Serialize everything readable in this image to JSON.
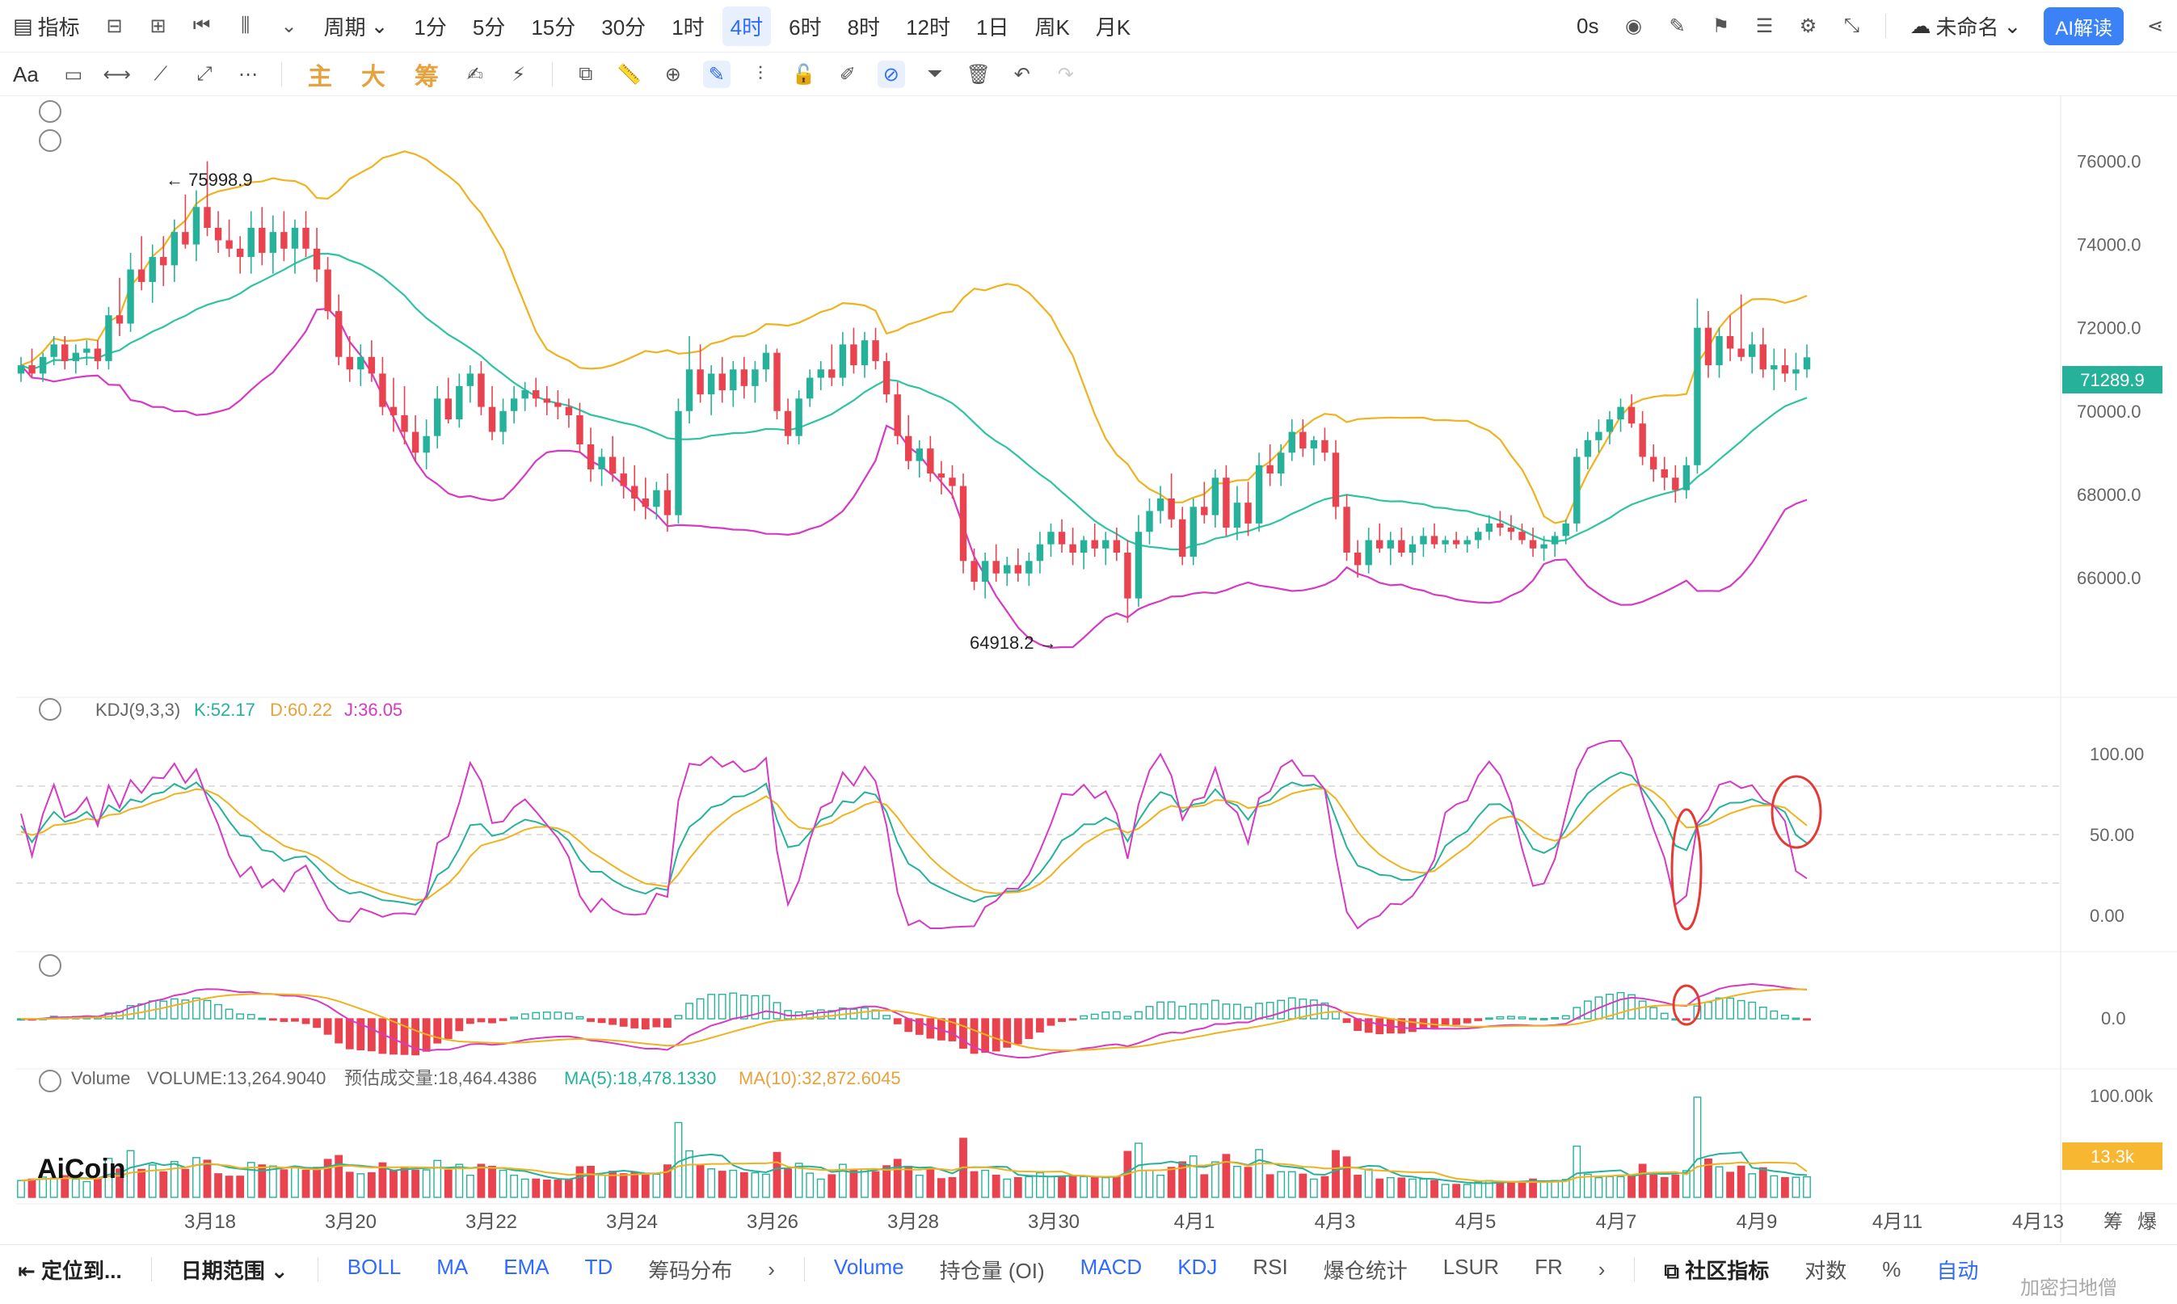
{
  "toolbar": {
    "indicators_label": "指标",
    "period_label": "周期",
    "periods": [
      "1分",
      "5分",
      "15分",
      "30分",
      "1时",
      "4时",
      "6时",
      "8时",
      "12时",
      "1日",
      "周K",
      "月K"
    ],
    "active_period": "4时",
    "countdown": "0s",
    "layout_name": "未命名",
    "ai_label": "AI解读"
  },
  "drawbar": {
    "font_label": "Aa",
    "cn_tools": [
      "主",
      "大",
      "筹"
    ]
  },
  "price_panel": {
    "yticks": [
      "76000.0",
      "74000.0",
      "72000.0",
      "70000.0",
      "68000.0",
      "66000.0"
    ],
    "last_price": "71289.9",
    "high_label": "← 75998.9",
    "low_label": "64918.2 →"
  },
  "kdj_panel": {
    "title": "KDJ(9,3,3)",
    "k": "K:52.17",
    "d": "D:60.22",
    "j": "J:36.05",
    "yticks": [
      "100.00",
      "50.00",
      "0.00"
    ]
  },
  "macd_panel": {
    "yticks": [
      "0.0"
    ]
  },
  "volume_panel": {
    "title": "Volume",
    "volume": "VOLUME:13,264.9040",
    "estimate": "预估成交量:18,464.4386",
    "ma5": "MA(5):18,478.1330",
    "ma10": "MA(10):32,872.6045",
    "yticks": [
      "100.00k"
    ],
    "last_volume": "13.3k",
    "logo": "AiCoin"
  },
  "x_axis": [
    "3月18",
    "3月20",
    "3月22",
    "3月24",
    "3月26",
    "3月28",
    "3月30",
    "4月1",
    "4月3",
    "4月5",
    "4月7",
    "4月9",
    "4月11",
    "4月13"
  ],
  "x_axis_right": [
    "筹",
    "爆"
  ],
  "bottombar": {
    "locate": "定位到...",
    "date_range": "日期范围",
    "indicators_left": [
      "BOLL",
      "MA",
      "EMA",
      "TD",
      "筹码分布"
    ],
    "indicators_right": [
      "Volume",
      "持仓量 (OI)",
      "MACD",
      "KDJ",
      "RSI",
      "爆仓统计",
      "LSUR",
      "FR"
    ],
    "community": "社区指标",
    "log_label": "对数",
    "pct_label": "%",
    "auto_label": "自动"
  },
  "watermark": "加密扫地僧",
  "colors": {
    "up": "#26b29a",
    "down": "#e8434f",
    "boll_upper": "#f0b21e",
    "boll_mid": "#2ec4a0",
    "boll_lower": "#d63ac4",
    "accent": "#2f6bff"
  },
  "chart_data": {
    "type": "candlestick",
    "x_axis_label_range": [
      "3月18",
      "4月13"
    ],
    "price_ylim": [
      64000,
      77000
    ],
    "ohlc": [
      [
        70900,
        71300,
        70700,
        71100
      ],
      [
        71100,
        71500,
        70800,
        70900
      ],
      [
        70900,
        71400,
        70700,
        71300
      ],
      [
        71300,
        71800,
        71100,
        71600
      ],
      [
        71600,
        71800,
        71000,
        71200
      ],
      [
        71200,
        71600,
        70900,
        71400
      ],
      [
        71400,
        71700,
        71100,
        71500
      ],
      [
        71500,
        71700,
        71000,
        71200
      ],
      [
        71200,
        72500,
        71000,
        72300
      ],
      [
        72300,
        73200,
        71800,
        72100
      ],
      [
        72100,
        73800,
        71900,
        73400
      ],
      [
        73400,
        74200,
        72900,
        73100
      ],
      [
        73100,
        74000,
        72600,
        73700
      ],
      [
        73700,
        74200,
        73000,
        73500
      ],
      [
        73500,
        74600,
        73100,
        74300
      ],
      [
        74300,
        75200,
        73900,
        74000
      ],
      [
        74000,
        75300,
        73600,
        74900
      ],
      [
        74900,
        76000,
        74200,
        74400
      ],
      [
        74400,
        74800,
        73800,
        74100
      ],
      [
        74100,
        74600,
        73700,
        73900
      ],
      [
        73900,
        74200,
        73300,
        73700
      ],
      [
        73700,
        74800,
        73300,
        74400
      ],
      [
        74400,
        74900,
        73500,
        73800
      ],
      [
        73800,
        74700,
        73300,
        74300
      ],
      [
        74300,
        74800,
        73600,
        73900
      ],
      [
        73900,
        74600,
        73300,
        74400
      ],
      [
        74400,
        74800,
        73700,
        73900
      ],
      [
        73900,
        74400,
        73100,
        73400
      ],
      [
        73400,
        73700,
        72200,
        72400
      ],
      [
        72400,
        72800,
        71100,
        71300
      ],
      [
        71300,
        71800,
        70700,
        71000
      ],
      [
        71000,
        71600,
        70600,
        71300
      ],
      [
        71300,
        71700,
        70700,
        70900
      ],
      [
        70900,
        71300,
        69900,
        70100
      ],
      [
        70100,
        70800,
        69500,
        69900
      ],
      [
        69900,
        70600,
        69200,
        69500
      ],
      [
        69500,
        69900,
        68800,
        69000
      ],
      [
        69000,
        69800,
        68600,
        69400
      ],
      [
        69400,
        70600,
        69100,
        70300
      ],
      [
        70300,
        70800,
        69700,
        69800
      ],
      [
        69800,
        70900,
        69600,
        70600
      ],
      [
        70600,
        71100,
        70200,
        70900
      ],
      [
        70900,
        71200,
        69900,
        70100
      ],
      [
        70100,
        70600,
        69300,
        69500
      ],
      [
        69500,
        70300,
        69200,
        70000
      ],
      [
        70000,
        70600,
        69700,
        70300
      ],
      [
        70300,
        70700,
        70000,
        70500
      ],
      [
        70500,
        70800,
        70100,
        70300
      ],
      [
        70300,
        70600,
        69900,
        70200
      ],
      [
        70200,
        70500,
        69800,
        70100
      ],
      [
        70100,
        70300,
        69600,
        69900
      ],
      [
        69900,
        70200,
        69000,
        69200
      ],
      [
        69200,
        69600,
        68300,
        68600
      ],
      [
        68600,
        69100,
        68200,
        68900
      ],
      [
        68900,
        69400,
        68300,
        68500
      ],
      [
        68500,
        68900,
        67900,
        68200
      ],
      [
        68200,
        68700,
        67600,
        67900
      ],
      [
        67900,
        68400,
        67400,
        67700
      ],
      [
        67700,
        68300,
        67400,
        68100
      ],
      [
        68100,
        68500,
        67100,
        67500
      ],
      [
        67500,
        70300,
        67300,
        70000
      ],
      [
        70000,
        71800,
        69700,
        71000
      ],
      [
        71000,
        71600,
        70200,
        70400
      ],
      [
        70400,
        71100,
        69900,
        70900
      ],
      [
        70900,
        71300,
        70200,
        70500
      ],
      [
        70500,
        71200,
        70100,
        71000
      ],
      [
        71000,
        71300,
        70300,
        70600
      ],
      [
        70600,
        71200,
        70200,
        71000
      ],
      [
        71000,
        71600,
        70700,
        71400
      ],
      [
        71400,
        71500,
        69800,
        70000
      ],
      [
        70000,
        70300,
        69200,
        69400
      ],
      [
        69400,
        70500,
        69200,
        70300
      ],
      [
        70300,
        71000,
        70100,
        70800
      ],
      [
        70800,
        71200,
        70500,
        71000
      ],
      [
        71000,
        71600,
        70600,
        70800
      ],
      [
        70800,
        71900,
        70600,
        71600
      ],
      [
        71600,
        72000,
        70900,
        71100
      ],
      [
        71100,
        71900,
        70800,
        71700
      ],
      [
        71700,
        72000,
        71000,
        71200
      ],
      [
        71200,
        71400,
        70200,
        70400
      ],
      [
        70400,
        70700,
        69200,
        69400
      ],
      [
        69400,
        69900,
        68600,
        68800
      ],
      [
        68800,
        69300,
        68400,
        69100
      ],
      [
        69100,
        69400,
        68300,
        68500
      ],
      [
        68500,
        68800,
        68000,
        68400
      ],
      [
        68400,
        68700,
        67900,
        68200
      ],
      [
        68200,
        68500,
        66100,
        66400
      ],
      [
        66400,
        66700,
        65700,
        65900
      ],
      [
        65900,
        66600,
        65500,
        66400
      ],
      [
        66400,
        66800,
        65900,
        66100
      ],
      [
        66100,
        66500,
        65800,
        66300
      ],
      [
        66300,
        66700,
        65900,
        66100
      ],
      [
        66100,
        66600,
        65800,
        66400
      ],
      [
        66400,
        67100,
        66100,
        66800
      ],
      [
        66800,
        67300,
        66500,
        67100
      ],
      [
        67100,
        67400,
        66600,
        66800
      ],
      [
        66800,
        67200,
        66300,
        66600
      ],
      [
        66600,
        67000,
        66200,
        66900
      ],
      [
        66900,
        67300,
        66500,
        66700
      ],
      [
        66700,
        67100,
        66300,
        66900
      ],
      [
        66900,
        67200,
        66400,
        66600
      ],
      [
        66600,
        66900,
        64918,
        65500
      ],
      [
        65500,
        67500,
        65300,
        67100
      ],
      [
        67100,
        67900,
        66800,
        67600
      ],
      [
        67600,
        68200,
        67300,
        67900
      ],
      [
        67900,
        68500,
        67200,
        67400
      ],
      [
        67400,
        67700,
        66300,
        66500
      ],
      [
        66500,
        67900,
        66300,
        67700
      ],
      [
        67700,
        68300,
        67300,
        67500
      ],
      [
        67500,
        68600,
        67200,
        68400
      ],
      [
        68400,
        68700,
        67000,
        67200
      ],
      [
        67200,
        68200,
        66900,
        67800
      ],
      [
        67800,
        68300,
        67000,
        67300
      ],
      [
        67300,
        69000,
        67100,
        68700
      ],
      [
        68700,
        69200,
        68200,
        68500
      ],
      [
        68500,
        69200,
        68200,
        69000
      ],
      [
        69000,
        69800,
        68800,
        69500
      ],
      [
        69500,
        69800,
        68900,
        69100
      ],
      [
        69100,
        69400,
        68700,
        69300
      ],
      [
        69300,
        69600,
        68800,
        69000
      ],
      [
        69000,
        69300,
        67400,
        67700
      ],
      [
        67700,
        68000,
        66400,
        66600
      ],
      [
        66600,
        66900,
        66000,
        66300
      ],
      [
        66300,
        67200,
        66100,
        66900
      ],
      [
        66900,
        67300,
        66600,
        66700
      ],
      [
        66700,
        67100,
        66300,
        66900
      ],
      [
        66900,
        67200,
        66500,
        66600
      ],
      [
        66600,
        67000,
        66300,
        66800
      ],
      [
        66800,
        67200,
        66500,
        67000
      ],
      [
        67000,
        67300,
        66700,
        66800
      ],
      [
        66800,
        67000,
        66600,
        66900
      ],
      [
        66900,
        67100,
        66700,
        66800
      ],
      [
        66800,
        67000,
        66600,
        66900
      ],
      [
        66900,
        67200,
        66700,
        67100
      ],
      [
        67100,
        67500,
        66900,
        67300
      ],
      [
        67300,
        67600,
        67000,
        67200
      ],
      [
        67200,
        67500,
        66900,
        67100
      ],
      [
        67100,
        67300,
        66800,
        66900
      ],
      [
        66900,
        67200,
        66500,
        66700
      ],
      [
        66700,
        67000,
        66400,
        66800
      ],
      [
        66800,
        67100,
        66500,
        67000
      ],
      [
        67000,
        67400,
        66800,
        67300
      ],
      [
        67300,
        69100,
        67100,
        68900
      ],
      [
        68900,
        69500,
        68600,
        69300
      ],
      [
        69300,
        69800,
        69000,
        69500
      ],
      [
        69500,
        70000,
        69200,
        69800
      ],
      [
        69800,
        70300,
        69500,
        70100
      ],
      [
        70100,
        70400,
        69600,
        69700
      ],
      [
        69700,
        70000,
        68700,
        68900
      ],
      [
        68900,
        69200,
        68300,
        68600
      ],
      [
        68600,
        68900,
        68100,
        68400
      ],
      [
        68400,
        68700,
        67800,
        68100
      ],
      [
        68100,
        68900,
        67900,
        68700
      ],
      [
        68700,
        72700,
        68500,
        72000
      ],
      [
        72000,
        72400,
        70800,
        71100
      ],
      [
        71100,
        72000,
        70800,
        71800
      ],
      [
        71800,
        72300,
        71200,
        71500
      ],
      [
        71500,
        72800,
        71200,
        71300
      ],
      [
        71300,
        71900,
        70900,
        71600
      ],
      [
        71600,
        72000,
        70800,
        71000
      ],
      [
        71000,
        71500,
        70500,
        71100
      ],
      [
        71100,
        71500,
        70700,
        70900
      ],
      [
        70900,
        71400,
        70500,
        71000
      ],
      [
        71000,
        71600,
        70800,
        71290
      ]
    ],
    "series": [
      {
        "name": "VOLUME",
        "values": []
      },
      {
        "name": "K",
        "values": []
      },
      {
        "name": "D",
        "values": []
      },
      {
        "name": "J",
        "values": []
      }
    ],
    "annotations": [
      {
        "text": "75998.9",
        "kind": "high"
      },
      {
        "text": "64918.2",
        "kind": "low"
      }
    ],
    "axes": {
      "ylim_price": [
        64000,
        77000
      ],
      "ylim_kdj": [
        -10,
        110
      ],
      "ylim_volume": [
        0,
        110000
      ]
    }
  }
}
